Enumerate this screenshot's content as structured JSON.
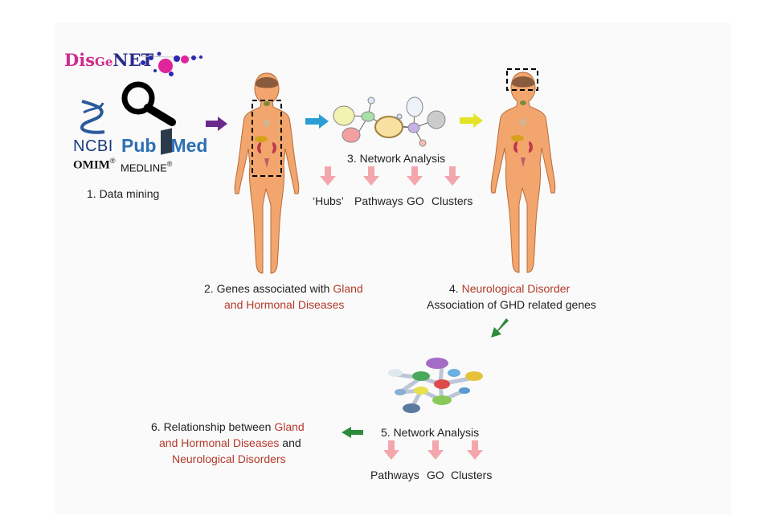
{
  "sources": {
    "disgenet": {
      "dis": "Dis",
      "ge": "Ge",
      "net": "NET"
    },
    "ncbi": "NCBI",
    "pubmed": {
      "pub": "Pub",
      "med": "Med"
    },
    "omim": "OMIM",
    "medline": "MEDLINE",
    "registered_mark": "®"
  },
  "steps": {
    "s1": "1. Data mining",
    "s2": {
      "prefix": "2. Genes associated with ",
      "highlight1": "Gland",
      "highlight2": "and Hormonal Diseases"
    },
    "s3": "3. Network Analysis",
    "s3_outputs": [
      "‘Hubs’",
      "Pathways",
      "GO",
      "Clusters"
    ],
    "s4": {
      "prefix": "4. ",
      "highlight": "Neurological Disorder",
      "line2": "Association of GHD related genes"
    },
    "s5": "5. Network Analysis",
    "s5_outputs": [
      "Pathways",
      "GO",
      "Clusters"
    ],
    "s6": {
      "line1_prefix": "6. Relationship between ",
      "line1_highlight": "Gland",
      "line2_highlight": "and Hormonal Diseases",
      "line2_suffix": " and",
      "line3_highlight": "Neurological Disorders"
    }
  },
  "colors": {
    "highlight": "#b23a2a",
    "arrow_purple": "#6a2a8c",
    "arrow_blue": "#2a9fd6",
    "arrow_yellow": "#e3e32a",
    "arrow_green": "#2e8b3a",
    "arrow_pink": "#f4a6ad",
    "skin": "#f2a66d"
  }
}
